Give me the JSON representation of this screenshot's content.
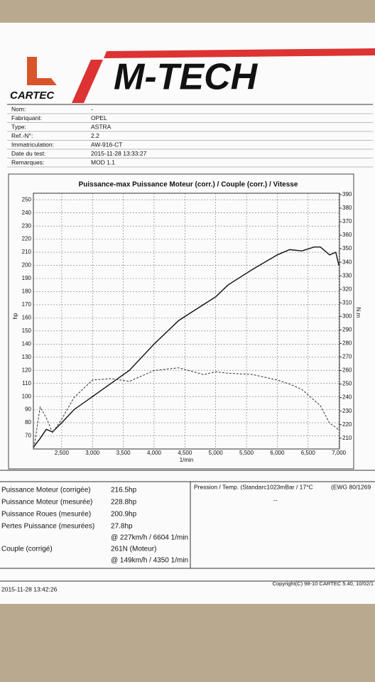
{
  "header": {
    "brand": "CARTEC",
    "logo": "M-TECH"
  },
  "fields": [
    [
      "Nom:",
      "-"
    ],
    [
      "Fabriquant:",
      "OPEL"
    ],
    [
      "Type:",
      "ASTRA"
    ],
    [
      "Ref.-N°:",
      "2.2"
    ],
    [
      "Immatriculation:",
      "AW-916-CT"
    ],
    [
      "Date du test:",
      "2015-11-28 13:33:27"
    ],
    [
      "Remarques:",
      "MOD 1.1"
    ]
  ],
  "chart_data": {
    "type": "line",
    "title": "Puissance-max Puissance Moteur (corr.) / Couple (corr.) / Vitesse",
    "xlabel": "1/min",
    "ylabel": "hp",
    "y2label": "N.m",
    "x": [
      2050,
      2150,
      2250,
      2350,
      2500,
      2700,
      3000,
      3300,
      3600,
      4000,
      4400,
      4800,
      5000,
      5200,
      5600,
      6000,
      6200,
      6400,
      6600,
      6700,
      6850,
      6950,
      7000
    ],
    "series": [
      {
        "color": "#111111",
        "style": "solid",
        "values": [
          62,
          68,
          75,
          73,
          80,
          90,
          100,
          110,
          120,
          140,
          158,
          170,
          176,
          185,
          197,
          208,
          212,
          211,
          214,
          214,
          208,
          210,
          200
        ]
      },
      {
        "color": "#333333",
        "style": "dashed",
        "axis": "y2",
        "values": [
          203,
          233,
          225,
          214,
          224,
          240,
          253,
          254,
          252,
          260,
          262,
          257,
          259,
          258,
          257,
          253,
          250,
          246,
          238,
          234,
          221,
          218,
          216
        ]
      }
    ],
    "xlim": [
      2040,
      7010
    ],
    "ylim": [
      60,
      255
    ],
    "y2lim": [
      202,
      391
    ],
    "xticks": [
      {
        "value": 2500,
        "label": "2,500"
      },
      {
        "value": 3000,
        "label": "3,000"
      },
      {
        "value": 3500,
        "label": "3,500"
      },
      {
        "value": 4000,
        "label": "4,000"
      },
      {
        "value": 4500,
        "label": "4,500"
      },
      {
        "value": 5000,
        "label": "5,000"
      },
      {
        "value": 5500,
        "label": "5,500"
      },
      {
        "value": 6000,
        "label": "6,000"
      },
      {
        "value": 6500,
        "label": "6,500"
      },
      {
        "value": 7000,
        "label": "7,000"
      }
    ],
    "yticks": [
      70,
      80,
      90,
      100,
      110,
      120,
      130,
      140,
      150,
      160,
      170,
      180,
      190,
      200,
      210,
      220,
      230,
      240,
      250
    ],
    "y2ticks": [
      210,
      220,
      230,
      240,
      250,
      260,
      270,
      280,
      290,
      300,
      310,
      320,
      330,
      340,
      350,
      360,
      370,
      380,
      390
    ],
    "grid": true
  },
  "results": {
    "left": [
      {
        "label": "Puissance Moteur (corrigée)",
        "value": "216.5hp"
      },
      {
        "label": "Puissance Moteur (mesurée)",
        "value": "228.8hp"
      },
      {
        "label": "Puissance Roues (mesurée)",
        "value": "200.9hp"
      },
      {
        "label": "Pertes Puissance (mesurées)",
        "value": "27.8hp"
      },
      {
        "value": "@ 227km/h / 6604 1/min"
      },
      {
        "label": "Couple (corrigé)",
        "value": "261N (Moteur)"
      },
      {
        "value": "@ 149km/h / 4350 1/min"
      }
    ],
    "right": [
      "Pression / Temp. (Standarc1023mBar / 17°C",
      "(EWG 80/1269",
      "--"
    ]
  },
  "footer": {
    "date": "2015-11-28 13:42:26",
    "copyright": "Copyright(C) 98-10 CARTEC 5.40, 10/02/1"
  }
}
